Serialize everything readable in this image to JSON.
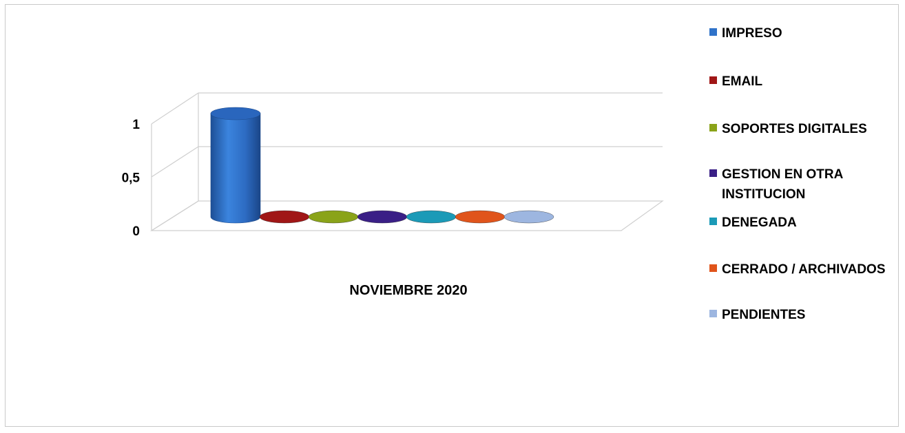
{
  "chart_data": {
    "type": "bar",
    "categories": [
      "NOVIEMBRE 2020"
    ],
    "series": [
      {
        "name": "IMPRESO",
        "values": [
          1
        ],
        "color": "#2f72c9"
      },
      {
        "name": "EMAIL",
        "values": [
          0
        ],
        "color": "#a01616"
      },
      {
        "name": "SOPORTES DIGITALES",
        "values": [
          0
        ],
        "color": "#8aa319"
      },
      {
        "name": "GESTION EN OTRA INSTITUCION",
        "values": [
          0
        ],
        "color": "#3a1f86"
      },
      {
        "name": "DENEGADA",
        "values": [
          0
        ],
        "color": "#1b9ab7"
      },
      {
        "name": "CERRADO / ARCHIVADOS",
        "values": [
          0
        ],
        "color": "#e0541b"
      },
      {
        "name": "PENDIENTES",
        "values": [
          0
        ],
        "color": "#9db6e0"
      }
    ],
    "yticks": [
      "0",
      "0,5",
      "1"
    ],
    "ylim": [
      0,
      1
    ],
    "grid": true,
    "style": "3d-cylinder",
    "legend_position": "right",
    "title": "",
    "xlabel": "",
    "ylabel": ""
  }
}
